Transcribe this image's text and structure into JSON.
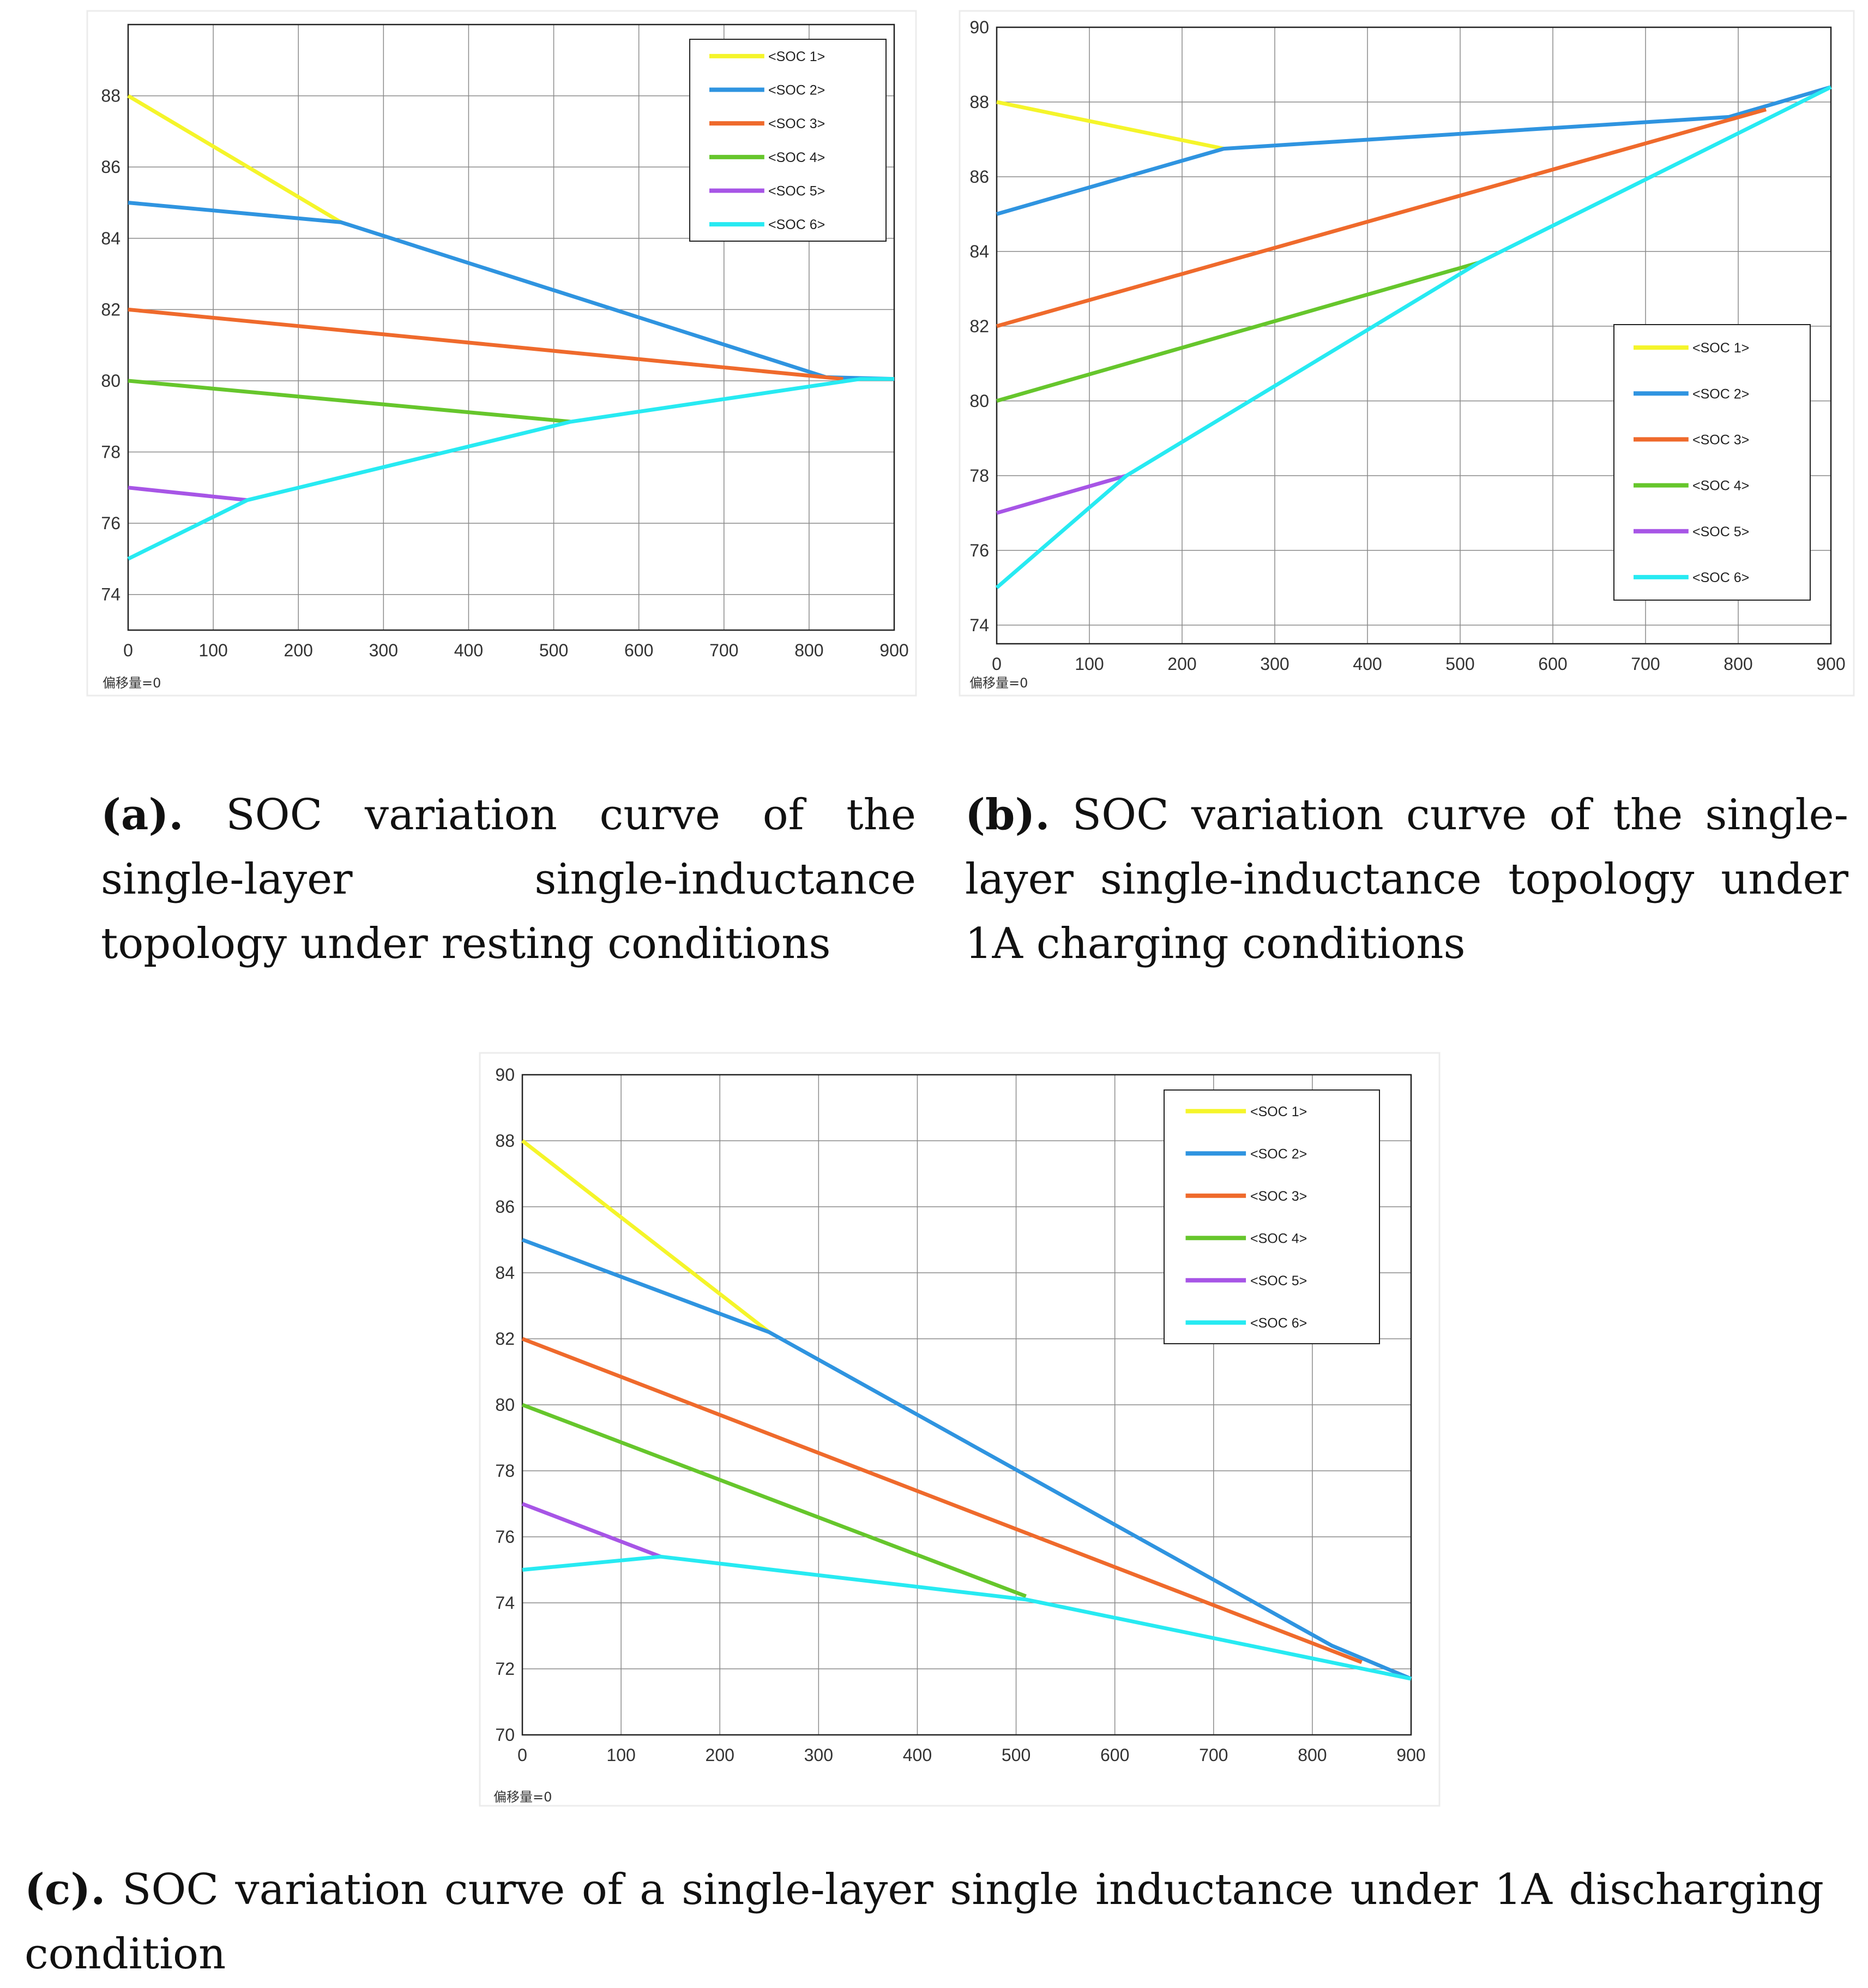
{
  "panels": [
    {
      "id": "a",
      "offset_label": "偏移量=0",
      "caption_tag": "(a).",
      "caption_text": " SOC variation curve of the single-layer single-inductance topology under resting conditions",
      "chart_data": {
        "type": "line",
        "xlim": [
          0,
          900
        ],
        "ylim": [
          73,
          90
        ],
        "xticks": [
          0,
          100,
          200,
          300,
          400,
          500,
          600,
          700,
          800,
          900
        ],
        "yticks": [
          74,
          76,
          78,
          80,
          82,
          84,
          86,
          88
        ],
        "grid": true,
        "legend_position": "top-right",
        "series": [
          {
            "name": "<SOC 1>",
            "color": "#f5f52a",
            "x": [
              0,
              250
            ],
            "y": [
              88,
              84.45
            ]
          },
          {
            "name": "<SOC 2>",
            "color": "#2f94e0",
            "x": [
              0,
              250,
              820,
              900
            ],
            "y": [
              85,
              84.45,
              80.1,
              80.05
            ]
          },
          {
            "name": "<SOC 3>",
            "color": "#ef6a2c",
            "x": [
              0,
              840
            ],
            "y": [
              82,
              80.05
            ]
          },
          {
            "name": "<SOC 4>",
            "color": "#66c62c",
            "x": [
              0,
              520
            ],
            "y": [
              80,
              78.85
            ]
          },
          {
            "name": "<SOC 5>",
            "color": "#a755e6",
            "x": [
              0,
              140
            ],
            "y": [
              77,
              76.65
            ]
          },
          {
            "name": "<SOC 6>",
            "color": "#27eaf2",
            "x": [
              0,
              140,
              520,
              860,
              900
            ],
            "y": [
              75,
              76.65,
              78.85,
              80.05,
              80.05
            ]
          }
        ]
      }
    },
    {
      "id": "b",
      "offset_label": "偏移量=0",
      "caption_tag": "(b).",
      "caption_text": " SOC variation curve of the single-layer single-inductance topology under 1A charging conditions",
      "chart_data": {
        "type": "line",
        "xlim": [
          0,
          900
        ],
        "ylim": [
          73.5,
          90
        ],
        "xticks": [
          0,
          100,
          200,
          300,
          400,
          500,
          600,
          700,
          800,
          900
        ],
        "yticks": [
          74,
          76,
          78,
          80,
          82,
          84,
          86,
          88,
          90
        ],
        "grid": true,
        "legend_position": "right",
        "series": [
          {
            "name": "<SOC 1>",
            "color": "#f5f52a",
            "x": [
              0,
              245
            ],
            "y": [
              88,
              86.75
            ]
          },
          {
            "name": "<SOC 2>",
            "color": "#2f94e0",
            "x": [
              0,
              245,
              790,
              900
            ],
            "y": [
              85,
              86.75,
              87.6,
              88.4
            ]
          },
          {
            "name": "<SOC 3>",
            "color": "#ef6a2c",
            "x": [
              0,
              830
            ],
            "y": [
              82,
              87.8
            ]
          },
          {
            "name": "<SOC 4>",
            "color": "#66c62c",
            "x": [
              0,
              520
            ],
            "y": [
              80,
              83.7
            ]
          },
          {
            "name": "<SOC 5>",
            "color": "#a755e6",
            "x": [
              0,
              140
            ],
            "y": [
              77,
              78
            ]
          },
          {
            "name": "<SOC 6>",
            "color": "#27eaf2",
            "x": [
              0,
              140,
              520,
              900
            ],
            "y": [
              75,
              78,
              83.7,
              88.4
            ]
          }
        ]
      }
    },
    {
      "id": "c",
      "offset_label": "偏移量=0",
      "caption_tag": "(c).",
      "caption_text": " SOC variation curve of a single-layer single inductance under 1A discharging condition",
      "chart_data": {
        "type": "line",
        "xlim": [
          0,
          900
        ],
        "ylim": [
          70,
          90
        ],
        "xticks": [
          0,
          100,
          200,
          300,
          400,
          500,
          600,
          700,
          800,
          900
        ],
        "yticks": [
          70,
          72,
          74,
          76,
          78,
          80,
          82,
          84,
          86,
          88,
          90
        ],
        "grid": true,
        "legend_position": "top-right",
        "series": [
          {
            "name": "<SOC 1>",
            "color": "#f5f52a",
            "x": [
              0,
              250
            ],
            "y": [
              88,
              82.2
            ]
          },
          {
            "name": "<SOC 2>",
            "color": "#2f94e0",
            "x": [
              0,
              250,
              820,
              900
            ],
            "y": [
              85,
              82.2,
              72.7,
              71.7
            ]
          },
          {
            "name": "<SOC 3>",
            "color": "#ef6a2c",
            "x": [
              0,
              850
            ],
            "y": [
              82,
              72.2
            ]
          },
          {
            "name": "<SOC 4>",
            "color": "#66c62c",
            "x": [
              0,
              510
            ],
            "y": [
              80,
              74.2
            ]
          },
          {
            "name": "<SOC 5>",
            "color": "#a755e6",
            "x": [
              0,
              140
            ],
            "y": [
              77,
              75.4
            ]
          },
          {
            "name": "<SOC 6>",
            "color": "#27eaf2",
            "x": [
              0,
              140,
              510,
              900
            ],
            "y": [
              75,
              75.4,
              74.1,
              71.7
            ]
          }
        ]
      }
    }
  ]
}
